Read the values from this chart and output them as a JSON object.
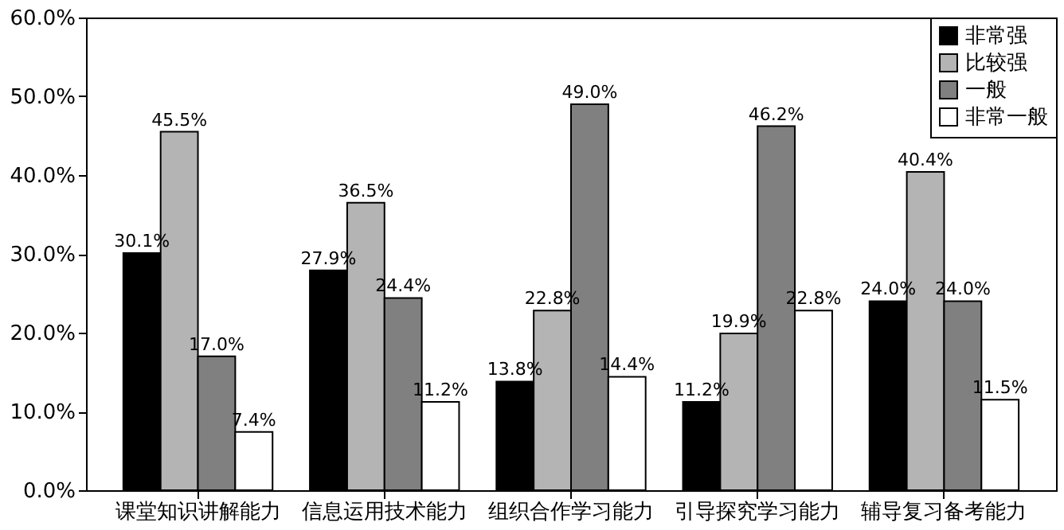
{
  "chart_data": {
    "type": "bar",
    "categories": [
      "课堂知识讲解能力",
      "信息运用技术能力",
      "组织合作学习能力",
      "引导探究学习能力",
      "辅导复习备考能力"
    ],
    "series": [
      {
        "name": "非常强",
        "color": "#000000",
        "values": [
          30.1,
          27.9,
          13.8,
          11.2,
          24.0
        ],
        "value_labels": [
          "30.1%",
          "27.9%",
          "13.8%",
          "11.2%",
          "24.0%"
        ]
      },
      {
        "name": "比较强",
        "color": "#b4b4b4",
        "values": [
          45.5,
          36.5,
          22.8,
          19.9,
          40.4
        ],
        "value_labels": [
          "45.5%",
          "36.5%",
          "22.8%",
          "19.9%",
          "40.4%"
        ]
      },
      {
        "name": "一般",
        "color": "#808080",
        "values": [
          17.0,
          24.4,
          49.0,
          46.2,
          24.0
        ],
        "value_labels": [
          "17.0%",
          "24.4%",
          "49.0%",
          "46.2%",
          "24.0%"
        ]
      },
      {
        "name": "非常一般",
        "color": "#ffffff",
        "values": [
          7.4,
          11.2,
          14.4,
          22.8,
          11.5
        ],
        "value_labels": [
          "7.4%",
          "11.2%",
          "14.4%",
          "22.8%",
          "11.5%"
        ]
      }
    ],
    "ylim": [
      0,
      60
    ],
    "yticks": [
      {
        "value": 0,
        "label": "0.0%"
      },
      {
        "value": 10,
        "label": "10.0%"
      },
      {
        "value": 20,
        "label": "20.0%"
      },
      {
        "value": 30,
        "label": "30.0%"
      },
      {
        "value": 40,
        "label": "40.0%"
      },
      {
        "value": 50,
        "label": "50.0%"
      },
      {
        "value": 60,
        "label": "60.0%"
      }
    ],
    "grid": false,
    "legend": "top right"
  }
}
